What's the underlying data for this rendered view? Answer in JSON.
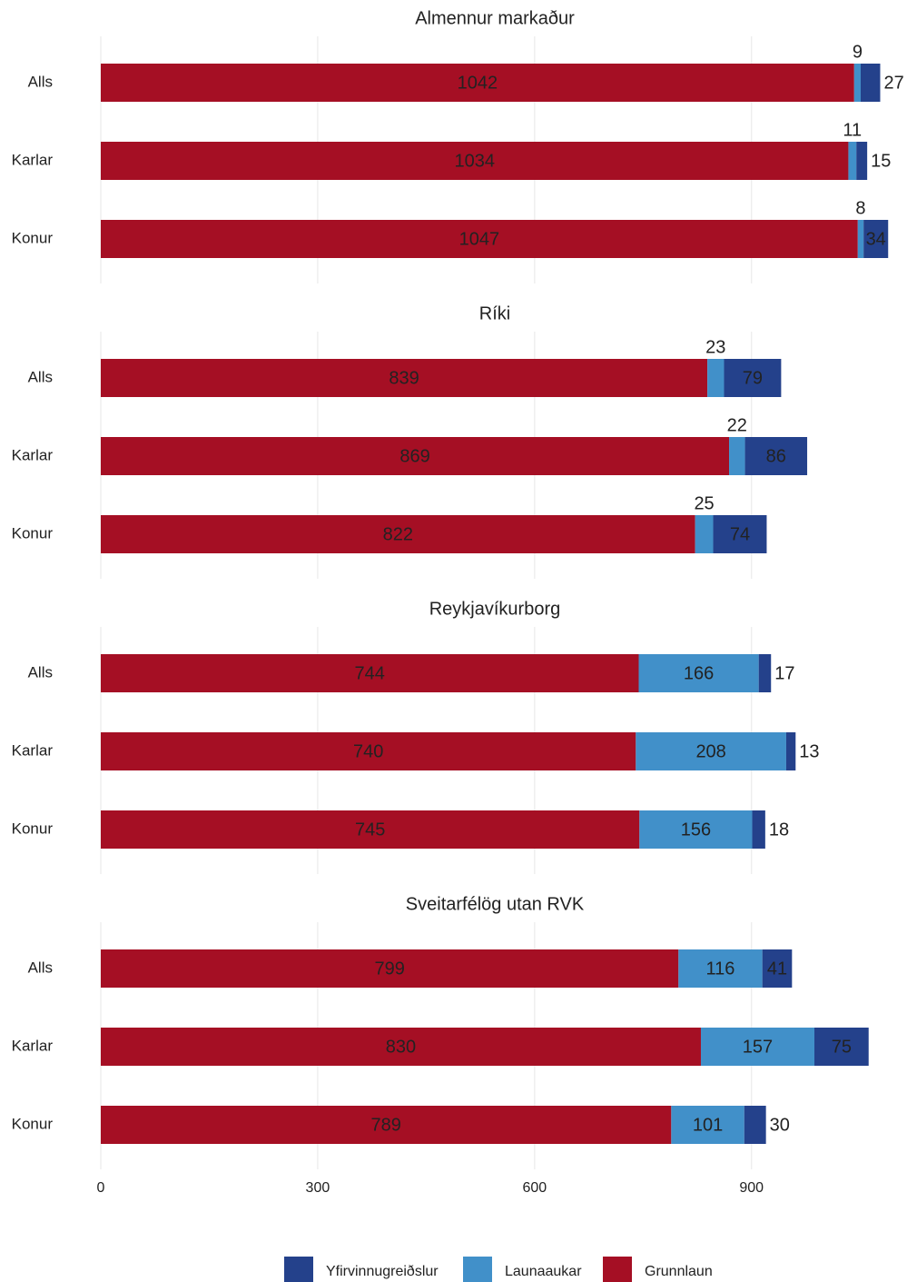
{
  "chart_data": [
    {
      "type": "stacked-barh",
      "title": "Almennur markaður",
      "categories": [
        "Alls",
        "Karlar",
        "Konur"
      ],
      "series": [
        {
          "name": "Grunnlaun",
          "color": "#a50f24",
          "values": [
            1042,
            1034,
            1047
          ]
        },
        {
          "name": "Launaaukar",
          "color": "#4190c9",
          "values": [
            9,
            11,
            8
          ]
        },
        {
          "name": "Yfirvinnugreiðslur",
          "color": "#24418b",
          "values": [
            27,
            15,
            34
          ]
        }
      ],
      "xlim": [
        0,
        1100
      ],
      "xticks": [
        0,
        300,
        600,
        900
      ],
      "grid": true
    },
    {
      "type": "stacked-barh",
      "title": "Ríki",
      "categories": [
        "Alls",
        "Karlar",
        "Konur"
      ],
      "series": [
        {
          "name": "Grunnlaun",
          "color": "#a50f24",
          "values": [
            839,
            869,
            822
          ]
        },
        {
          "name": "Launaaukar",
          "color": "#4190c9",
          "values": [
            23,
            22,
            25
          ]
        },
        {
          "name": "Yfirvinnugreiðslur",
          "color": "#24418b",
          "values": [
            79,
            86,
            74
          ]
        }
      ],
      "xlim": [
        0,
        1100
      ],
      "xticks": [
        0,
        300,
        600,
        900
      ],
      "grid": true
    },
    {
      "type": "stacked-barh",
      "title": "Reykjavíkurborg",
      "categories": [
        "Alls",
        "Karlar",
        "Konur"
      ],
      "series": [
        {
          "name": "Grunnlaun",
          "color": "#a50f24",
          "values": [
            744,
            740,
            745
          ]
        },
        {
          "name": "Launaaukar",
          "color": "#4190c9",
          "values": [
            166,
            208,
            156
          ]
        },
        {
          "name": "Yfirvinnugreiðslur",
          "color": "#24418b",
          "values": [
            17,
            13,
            18
          ]
        }
      ],
      "xlim": [
        0,
        1100
      ],
      "xticks": [
        0,
        300,
        600,
        900
      ],
      "grid": true
    },
    {
      "type": "stacked-barh",
      "title": "Sveitarfélög utan RVK",
      "categories": [
        "Alls",
        "Karlar",
        "Konur"
      ],
      "series": [
        {
          "name": "Grunnlaun",
          "color": "#a50f24",
          "values": [
            799,
            830,
            789
          ]
        },
        {
          "name": "Launaaukar",
          "color": "#4190c9",
          "values": [
            116,
            157,
            101
          ]
        },
        {
          "name": "Yfirvinnugreiðslur",
          "color": "#24418b",
          "values": [
            41,
            75,
            30
          ]
        }
      ],
      "xlim": [
        0,
        1100
      ],
      "xticks": [
        0,
        300,
        600,
        900
      ],
      "grid": true
    }
  ]
}
